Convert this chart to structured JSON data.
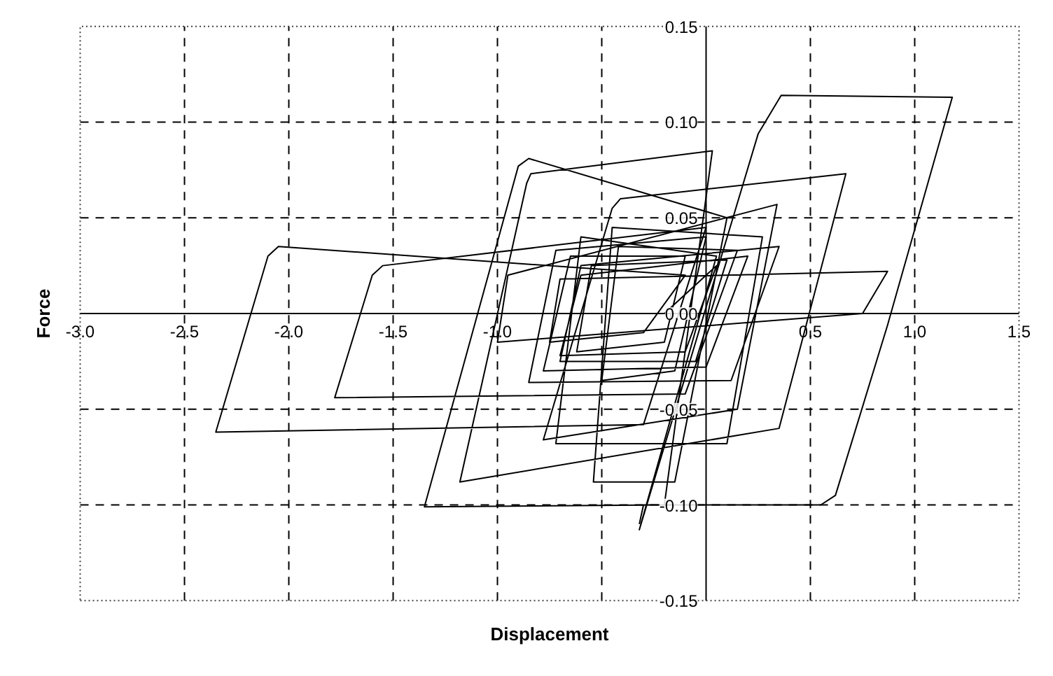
{
  "chart_data": {
    "type": "line",
    "xlabel": "Displacement",
    "ylabel": "Force",
    "xlim": [
      -3.0,
      1.5
    ],
    "ylim": [
      -0.15,
      0.15
    ],
    "xticks": [
      {
        "value": -3,
        "label": "-3.0"
      },
      -2.5,
      {
        "value": -2,
        "label": "-2.0"
      },
      -1.5,
      {
        "value": -1,
        "label": "-1.0"
      },
      {
        "value": -0.5,
        "label": null
      },
      {
        "value": 0,
        "label": null
      },
      0.5,
      {
        "value": 1,
        "label": "1.0"
      },
      1.5
    ],
    "yticks": [
      -0.15,
      {
        "value": -0.1,
        "label": "-0.10"
      },
      -0.05,
      {
        "value": 0,
        "label": "0.00"
      },
      0.05,
      {
        "value": 0.1,
        "label": "0.10"
      },
      0.15
    ],
    "grid": true,
    "line_style": "solid",
    "marker": "none",
    "series": [
      {
        "color": "#000000",
        "x": [
          -0.2,
          0.05,
          -0.1,
          -0.7,
          -0.6,
          0.2,
          0.0,
          -0.78,
          -0.65,
          -0.1,
          -0.2,
          -0.62,
          -0.55,
          0.1,
          -0.05,
          -0.7,
          -0.6,
          0.35,
          0.12,
          -0.85,
          -0.72,
          0.0,
          -0.15,
          -0.5,
          -0.42,
          0.15,
          -0.1,
          -1.78,
          -1.6,
          -1.55,
          0.0,
          -0.3,
          -2.35,
          -2.1,
          -2.05,
          -0.1,
          -0.3,
          -0.75,
          -0.7,
          0.87,
          0.75,
          -1.0,
          -0.95,
          0.34,
          0.15,
          -0.78,
          -0.45,
          -0.41,
          0.67,
          0.35,
          -1.18,
          -0.86,
          -0.84,
          0.03,
          -0.2,
          -1.35,
          -0.9,
          -0.85,
          0.1,
          -0.15,
          -0.54,
          -0.45,
          0.27,
          0.1,
          -0.72,
          -0.6,
          0.05,
          -0.32,
          0.25,
          0.36,
          1.18,
          0.87,
          0.62,
          0.55,
          -0.3,
          -0.32
        ],
        "values": [
          0.0,
          0.025,
          -0.02,
          -0.022,
          0.02,
          0.03,
          -0.028,
          -0.03,
          0.03,
          0.03,
          -0.015,
          -0.02,
          0.025,
          0.028,
          -0.025,
          -0.025,
          0.025,
          0.035,
          -0.035,
          -0.036,
          0.033,
          0.04,
          -0.03,
          -0.035,
          0.035,
          0.033,
          -0.042,
          -0.044,
          0.02,
          0.025,
          0.045,
          -0.058,
          -0.062,
          0.03,
          0.035,
          0.02,
          -0.01,
          -0.015,
          0.018,
          0.022,
          0.0,
          -0.015,
          0.02,
          0.057,
          -0.05,
          -0.066,
          0.055,
          0.06,
          0.073,
          -0.06,
          -0.088,
          0.068,
          0.073,
          0.085,
          -0.1,
          -0.101,
          0.077,
          0.081,
          0.05,
          -0.088,
          -0.088,
          0.045,
          0.04,
          -0.068,
          -0.068,
          0.04,
          0.03,
          -0.113,
          0.094,
          0.114,
          0.113,
          -0.006,
          -0.095,
          -0.1,
          -0.1,
          -0.11
        ]
      }
    ]
  }
}
